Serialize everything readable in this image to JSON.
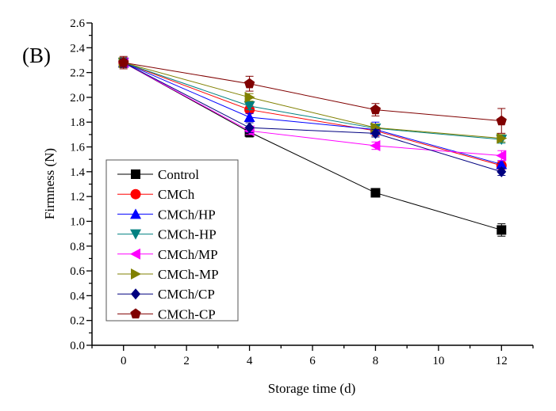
{
  "panel_label": "(B)",
  "chart_data": {
    "type": "line",
    "xlabel": "Storage time (d)",
    "ylabel": "Firmness (N)",
    "xlim": [
      -1,
      13
    ],
    "ylim": [
      0,
      2.6
    ],
    "xticks": [
      0,
      2,
      4,
      6,
      8,
      10,
      12
    ],
    "yticks": [
      0.0,
      0.2,
      0.4,
      0.6,
      0.8,
      1.0,
      1.2,
      1.4,
      1.6,
      1.8,
      2.0,
      2.2,
      2.4,
      2.6
    ],
    "grid": false,
    "legend_position": "bottom-left",
    "x": [
      0,
      4,
      8,
      12
    ],
    "series": [
      {
        "name": "Control",
        "color": "#000000",
        "marker": "square",
        "values": [
          2.28,
          1.72,
          1.23,
          0.93
        ],
        "errors": [
          0.04,
          0.04,
          0.02,
          0.05
        ]
      },
      {
        "name": "CMCh",
        "color": "#ff0000",
        "marker": "circle",
        "values": [
          2.28,
          1.9,
          1.73,
          1.45
        ],
        "errors": [
          0.03,
          0.03,
          0.04,
          0.03
        ]
      },
      {
        "name": "CMCh/HP",
        "color": "#0000ff",
        "marker": "triangle-up",
        "values": [
          2.28,
          1.84,
          1.74,
          1.46
        ],
        "errors": [
          0.03,
          0.03,
          0.06,
          0.03
        ]
      },
      {
        "name": "CMCh-HP",
        "color": "#008080",
        "marker": "triangle-down",
        "values": [
          2.28,
          1.93,
          1.75,
          1.66
        ],
        "errors": [
          0.03,
          0.03,
          0.03,
          0.03
        ]
      },
      {
        "name": "CMCh/MP",
        "color": "#ff00ff",
        "marker": "triangle-left",
        "values": [
          2.28,
          1.73,
          1.61,
          1.53
        ],
        "errors": [
          0.03,
          0.03,
          0.03,
          0.04
        ]
      },
      {
        "name": "CMCh-MP",
        "color": "#808000",
        "marker": "triangle-right",
        "values": [
          2.28,
          2.0,
          1.755,
          1.67
        ],
        "errors": [
          0.03,
          0.03,
          0.03,
          0.03
        ]
      },
      {
        "name": "CMCh/CP",
        "color": "#000080",
        "marker": "diamond",
        "values": [
          2.28,
          1.755,
          1.71,
          1.4
        ],
        "errors": [
          0.03,
          0.04,
          0.03,
          0.03
        ]
      },
      {
        "name": "CMCh-CP",
        "color": "#800000",
        "marker": "pentagon",
        "values": [
          2.28,
          2.11,
          1.9,
          1.81
        ],
        "errors": [
          0.05,
          0.06,
          0.05,
          0.1
        ]
      }
    ]
  }
}
